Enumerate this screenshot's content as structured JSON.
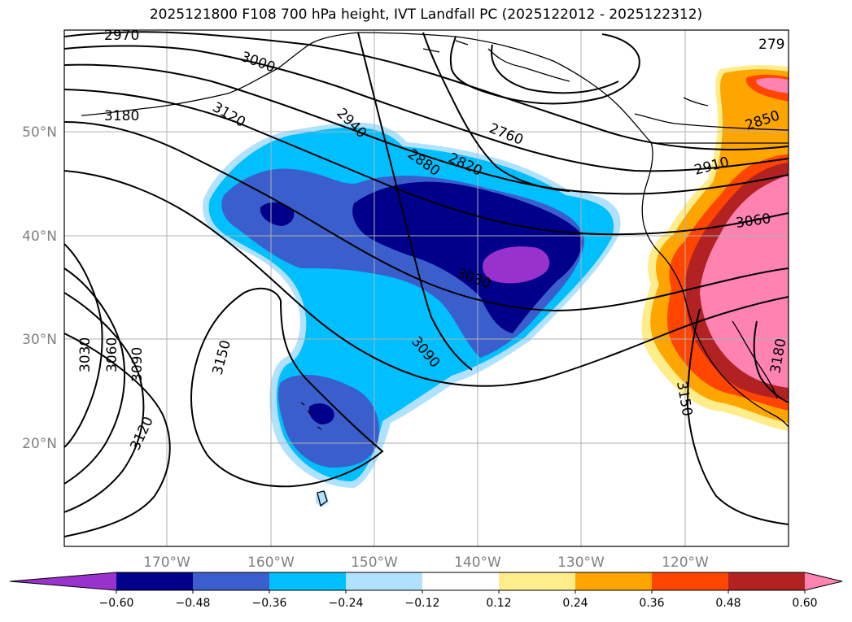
{
  "title": "2025121800 F108 700 hPa height, IVT Landfall PC (2025122012 - 2025122312)",
  "lat_labels": [
    "50°N",
    "40°N",
    "30°N",
    "20°N"
  ],
  "lon_labels": [
    "170°W",
    "160°W",
    "150°W",
    "140°W",
    "130°W",
    "120°W"
  ],
  "contour_labels": [
    "2970",
    "3000",
    "3120",
    "3180",
    "2940",
    "2880",
    "2820",
    "2760",
    "2850",
    "2910",
    "3060",
    "3030",
    "3090",
    "3150",
    "3120",
    "3030",
    "3060",
    "3090",
    "3150",
    "3180",
    "279"
  ],
  "colorbar": {
    "colors": [
      "#9932cc",
      "#00008b",
      "#3a5fcd",
      "#00bfff",
      "#b0e2ff",
      "#ffffff",
      "#ffec8b",
      "#ffa500",
      "#ff4500",
      "#b22222",
      "#ff83b0"
    ],
    "tick_labels": [
      "−0.60",
      "−0.48",
      "−0.36",
      "−0.24",
      "−0.12",
      "0.12",
      "0.24",
      "0.36",
      "0.48",
      "0.60"
    ]
  }
}
